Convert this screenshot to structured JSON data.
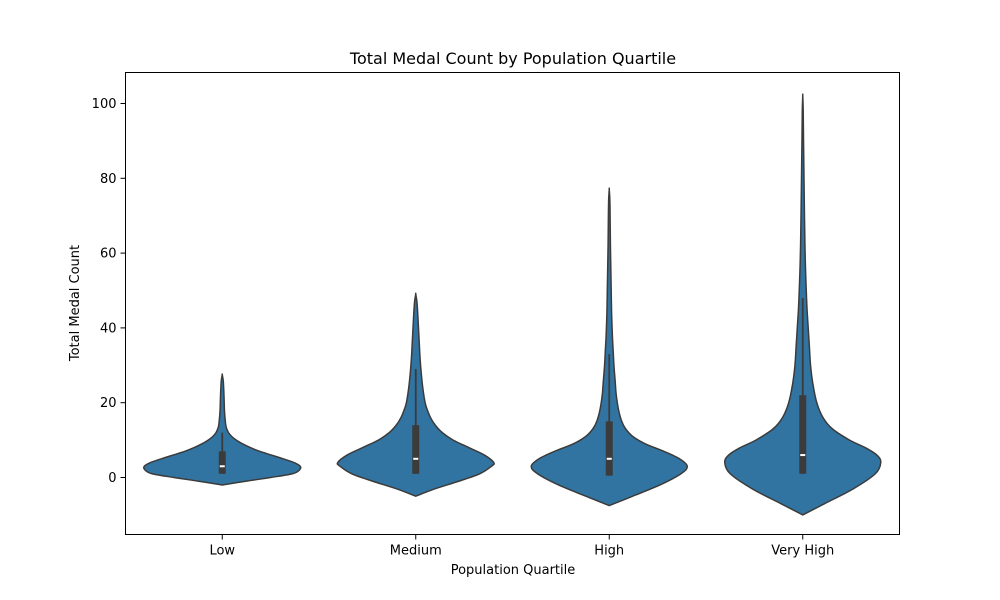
{
  "chart_data": {
    "type": "violin",
    "title": "Total Medal Count by Population Quartile",
    "xlabel": "Population Quartile",
    "ylabel": "Total Medal Count",
    "categories": [
      "Low",
      "Medium",
      "High",
      "Very High"
    ],
    "ylim": [
      -15,
      108
    ],
    "yticks": [
      0,
      20,
      40,
      60,
      80,
      100
    ],
    "fill_color": "#3274a1",
    "edge_color": "#3b3b3b",
    "grid": false,
    "violins": [
      {
        "category": "Low",
        "min": -2,
        "max": 27.5,
        "q1": 1,
        "median": 3,
        "q3": 7,
        "whisker_low": 1,
        "whisker_high": 12,
        "density": [
          [
            -2,
            0.0
          ],
          [
            -1,
            0.3
          ],
          [
            0,
            0.62
          ],
          [
            1,
            0.9
          ],
          [
            2,
            0.99
          ],
          [
            3,
            1.0
          ],
          [
            4,
            0.92
          ],
          [
            5,
            0.78
          ],
          [
            6,
            0.63
          ],
          [
            7,
            0.48
          ],
          [
            8,
            0.36
          ],
          [
            9,
            0.26
          ],
          [
            10,
            0.18
          ],
          [
            11,
            0.12
          ],
          [
            12,
            0.08
          ],
          [
            13,
            0.058
          ],
          [
            14,
            0.045
          ],
          [
            16,
            0.035
          ],
          [
            18,
            0.028
          ],
          [
            20,
            0.025
          ],
          [
            22,
            0.022
          ],
          [
            24,
            0.018
          ],
          [
            26,
            0.012
          ],
          [
            27.5,
            0.0
          ]
        ]
      },
      {
        "category": "Medium",
        "min": -5,
        "max": 49,
        "q1": 1,
        "median": 5,
        "q3": 14,
        "whisker_low": 1,
        "whisker_high": 29,
        "density": [
          [
            -5,
            0.0
          ],
          [
            -3,
            0.25
          ],
          [
            -1,
            0.55
          ],
          [
            1,
            0.82
          ],
          [
            3,
            0.97
          ],
          [
            4,
            1.0
          ],
          [
            6,
            0.88
          ],
          [
            8,
            0.68
          ],
          [
            10,
            0.48
          ],
          [
            12,
            0.34
          ],
          [
            14,
            0.25
          ],
          [
            16,
            0.19
          ],
          [
            18,
            0.15
          ],
          [
            20,
            0.12
          ],
          [
            24,
            0.09
          ],
          [
            28,
            0.07
          ],
          [
            32,
            0.055
          ],
          [
            36,
            0.045
          ],
          [
            40,
            0.035
          ],
          [
            44,
            0.025
          ],
          [
            47,
            0.015
          ],
          [
            49,
            0.0
          ]
        ]
      },
      {
        "category": "High",
        "min": -7.5,
        "max": 77,
        "q1": 0.5,
        "median": 5,
        "q3": 15,
        "whisker_low": 0.5,
        "whisker_high": 33,
        "density": [
          [
            -7.5,
            0.0
          ],
          [
            -5,
            0.3
          ],
          [
            -2,
            0.65
          ],
          [
            1,
            0.92
          ],
          [
            3,
            1.0
          ],
          [
            5,
            0.9
          ],
          [
            7,
            0.7
          ],
          [
            9,
            0.46
          ],
          [
            11,
            0.3
          ],
          [
            13,
            0.21
          ],
          [
            15,
            0.16
          ],
          [
            18,
            0.12
          ],
          [
            22,
            0.09
          ],
          [
            26,
            0.075
          ],
          [
            30,
            0.06
          ],
          [
            34,
            0.05
          ],
          [
            38,
            0.04
          ],
          [
            44,
            0.03
          ],
          [
            50,
            0.025
          ],
          [
            56,
            0.02
          ],
          [
            62,
            0.015
          ],
          [
            68,
            0.012
          ],
          [
            74,
            0.008
          ],
          [
            77,
            0.0
          ]
        ]
      },
      {
        "category": "Very High",
        "min": -10,
        "max": 102,
        "q1": 1,
        "median": 6,
        "q3": 22,
        "whisker_low": 1,
        "whisker_high": 48,
        "density": [
          [
            -10,
            0.0
          ],
          [
            -7,
            0.28
          ],
          [
            -3,
            0.65
          ],
          [
            1,
            0.93
          ],
          [
            4,
            1.0
          ],
          [
            6,
            0.95
          ],
          [
            8,
            0.8
          ],
          [
            10,
            0.6
          ],
          [
            13,
            0.38
          ],
          [
            16,
            0.26
          ],
          [
            20,
            0.18
          ],
          [
            25,
            0.13
          ],
          [
            30,
            0.1
          ],
          [
            35,
            0.085
          ],
          [
            40,
            0.07
          ],
          [
            45,
            0.055
          ],
          [
            50,
            0.045
          ],
          [
            56,
            0.035
          ],
          [
            62,
            0.028
          ],
          [
            70,
            0.022
          ],
          [
            80,
            0.016
          ],
          [
            90,
            0.01
          ],
          [
            98,
            0.006
          ],
          [
            102,
            0.0
          ]
        ]
      }
    ]
  }
}
